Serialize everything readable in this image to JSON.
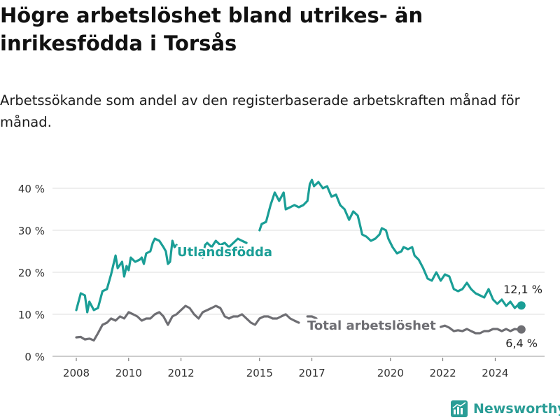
{
  "title": "Högre arbetslöshet bland utrikes- än inrikesfödda i Torsås",
  "subtitle": "Arbetssökande som andel av den registerbaserade arbetskraften månad för månad.",
  "brand": {
    "name": "Newsworthy"
  },
  "colors": {
    "foreign": "#1a9e96",
    "total": "#6e6e73",
    "grid": "#dcdcdc",
    "text": "#333333"
  },
  "chart_data": {
    "type": "line",
    "xlabel": "",
    "ylabel": "",
    "xlim": [
      2007.75,
      2025.6
    ],
    "ylim": [
      0,
      42
    ],
    "yticks": [
      0,
      10,
      20,
      30,
      40
    ],
    "ytick_labels": [
      "0 %",
      "10 %",
      "20 %",
      "30 %",
      "40 %"
    ],
    "xticks": [
      2008,
      2010,
      2012,
      2015,
      2017,
      2020,
      2022,
      2024
    ],
    "xtick_labels": [
      "2008",
      "2010",
      "2012",
      "2015",
      "2017",
      "2020",
      "2022",
      "2024"
    ],
    "grid": true,
    "series": [
      {
        "name": "Utlandsfödda",
        "end_label": "12,1 %",
        "color": "#1a9e96",
        "points": [
          [
            2008.0,
            11.0
          ],
          [
            2008.17,
            15.0
          ],
          [
            2008.33,
            14.5
          ],
          [
            2008.42,
            10.5
          ],
          [
            2008.5,
            13.0
          ],
          [
            2008.67,
            11.0
          ],
          [
            2008.83,
            11.5
          ],
          [
            2009.0,
            15.5
          ],
          [
            2009.17,
            16.0
          ],
          [
            2009.33,
            19.5
          ],
          [
            2009.5,
            24.0
          ],
          [
            2009.58,
            21.0
          ],
          [
            2009.75,
            22.5
          ],
          [
            2009.83,
            19.0
          ],
          [
            2009.92,
            21.5
          ],
          [
            2010.0,
            20.5
          ],
          [
            2010.08,
            23.5
          ],
          [
            2010.25,
            22.5
          ],
          [
            2010.42,
            23.0
          ],
          [
            2010.5,
            23.5
          ],
          [
            2010.58,
            22.0
          ],
          [
            2010.67,
            24.5
          ],
          [
            2010.83,
            25.0
          ],
          [
            2010.92,
            27.0
          ],
          [
            2011.0,
            28.0
          ],
          [
            2011.17,
            27.5
          ],
          [
            2011.33,
            26.0
          ],
          [
            2011.42,
            25.0
          ],
          [
            2011.5,
            22.0
          ],
          [
            2011.58,
            22.5
          ],
          [
            2011.67,
            27.5
          ],
          [
            2011.75,
            26.0
          ],
          [
            2011.83,
            26.5
          ],
          [
            2012.75,
            24.0
          ],
          [
            2012.83,
            23.5
          ],
          [
            2012.92,
            26.5
          ],
          [
            2013.0,
            27.0
          ],
          [
            2013.17,
            26.0
          ],
          [
            2013.33,
            27.5
          ],
          [
            2013.5,
            26.5
          ],
          [
            2013.67,
            27.0
          ],
          [
            2013.83,
            26.0
          ],
          [
            2014.0,
            27.0
          ],
          [
            2014.17,
            28.0
          ],
          [
            2014.33,
            27.5
          ],
          [
            2014.5,
            27.0
          ],
          [
            2015.0,
            30.0
          ],
          [
            2015.08,
            31.5
          ],
          [
            2015.25,
            32.0
          ],
          [
            2015.42,
            36.0
          ],
          [
            2015.58,
            39.0
          ],
          [
            2015.75,
            37.0
          ],
          [
            2015.92,
            39.0
          ],
          [
            2016.0,
            35.0
          ],
          [
            2016.17,
            35.5
          ],
          [
            2016.33,
            36.0
          ],
          [
            2016.5,
            35.5
          ],
          [
            2016.67,
            36.0
          ],
          [
            2016.83,
            37.0
          ],
          [
            2016.92,
            41.0
          ],
          [
            2017.0,
            42.0
          ],
          [
            2017.08,
            40.5
          ],
          [
            2017.25,
            41.5
          ],
          [
            2017.42,
            40.0
          ],
          [
            2017.58,
            40.5
          ],
          [
            2017.75,
            38.0
          ],
          [
            2017.92,
            38.5
          ],
          [
            2018.08,
            36.0
          ],
          [
            2018.25,
            35.0
          ],
          [
            2018.42,
            32.5
          ],
          [
            2018.58,
            34.5
          ],
          [
            2018.75,
            33.5
          ],
          [
            2018.83,
            31.5
          ],
          [
            2018.92,
            29.0
          ],
          [
            2019.08,
            28.5
          ],
          [
            2019.25,
            27.5
          ],
          [
            2019.42,
            28.0
          ],
          [
            2019.58,
            29.0
          ],
          [
            2019.67,
            30.5
          ],
          [
            2019.83,
            30.0
          ],
          [
            2019.92,
            28.0
          ],
          [
            2020.08,
            26.0
          ],
          [
            2020.25,
            24.5
          ],
          [
            2020.42,
            25.0
          ],
          [
            2020.5,
            26.0
          ],
          [
            2020.67,
            25.5
          ],
          [
            2020.83,
            26.0
          ],
          [
            2020.92,
            24.0
          ],
          [
            2021.08,
            23.0
          ],
          [
            2021.25,
            21.0
          ],
          [
            2021.42,
            18.5
          ],
          [
            2021.58,
            18.0
          ],
          [
            2021.75,
            20.0
          ],
          [
            2021.92,
            18.0
          ],
          [
            2022.08,
            19.5
          ],
          [
            2022.25,
            19.0
          ],
          [
            2022.42,
            16.0
          ],
          [
            2022.58,
            15.5
          ],
          [
            2022.75,
            16.0
          ],
          [
            2022.92,
            17.5
          ],
          [
            2023.08,
            16.0
          ],
          [
            2023.25,
            15.0
          ],
          [
            2023.42,
            14.5
          ],
          [
            2023.58,
            14.0
          ],
          [
            2023.75,
            16.0
          ],
          [
            2023.92,
            13.5
          ],
          [
            2024.08,
            12.5
          ],
          [
            2024.25,
            13.5
          ],
          [
            2024.42,
            12.0
          ],
          [
            2024.58,
            13.0
          ],
          [
            2024.75,
            11.5
          ],
          [
            2024.92,
            12.5
          ],
          [
            2025.0,
            12.1
          ]
        ]
      },
      {
        "name": "Total arbetslöshet",
        "end_label": "6,4 %",
        "color": "#6e6e73",
        "points": [
          [
            2008.0,
            4.5
          ],
          [
            2008.17,
            4.6
          ],
          [
            2008.33,
            4.0
          ],
          [
            2008.5,
            4.2
          ],
          [
            2008.67,
            3.8
          ],
          [
            2008.83,
            5.5
          ],
          [
            2009.0,
            7.5
          ],
          [
            2009.17,
            8.0
          ],
          [
            2009.33,
            9.0
          ],
          [
            2009.5,
            8.5
          ],
          [
            2009.67,
            9.5
          ],
          [
            2009.83,
            9.0
          ],
          [
            2010.0,
            10.5
          ],
          [
            2010.17,
            10.0
          ],
          [
            2010.33,
            9.5
          ],
          [
            2010.5,
            8.5
          ],
          [
            2010.67,
            9.0
          ],
          [
            2010.83,
            9.0
          ],
          [
            2011.0,
            10.0
          ],
          [
            2011.17,
            10.5
          ],
          [
            2011.33,
            9.5
          ],
          [
            2011.5,
            7.5
          ],
          [
            2011.67,
            9.5
          ],
          [
            2011.83,
            10.0
          ],
          [
            2012.0,
            11.0
          ],
          [
            2012.17,
            12.0
          ],
          [
            2012.33,
            11.5
          ],
          [
            2012.5,
            10.0
          ],
          [
            2012.67,
            9.0
          ],
          [
            2012.83,
            10.5
          ],
          [
            2013.0,
            11.0
          ],
          [
            2013.17,
            11.5
          ],
          [
            2013.33,
            12.0
          ],
          [
            2013.5,
            11.5
          ],
          [
            2013.67,
            9.5
          ],
          [
            2013.83,
            9.0
          ],
          [
            2014.0,
            9.5
          ],
          [
            2014.17,
            9.5
          ],
          [
            2014.33,
            10.0
          ],
          [
            2014.5,
            9.0
          ],
          [
            2014.67,
            8.0
          ],
          [
            2014.83,
            7.5
          ],
          [
            2015.0,
            9.0
          ],
          [
            2015.17,
            9.5
          ],
          [
            2015.33,
            9.5
          ],
          [
            2015.5,
            9.0
          ],
          [
            2015.67,
            9.0
          ],
          [
            2015.83,
            9.5
          ],
          [
            2016.0,
            10.0
          ],
          [
            2016.17,
            9.0
          ],
          [
            2016.33,
            8.5
          ],
          [
            2016.5,
            8.0
          ],
          [
            2016.83,
            9.5
          ],
          [
            2017.0,
            9.5
          ],
          [
            2017.17,
            9.0
          ],
          [
            2021.92,
            7.0
          ],
          [
            2022.08,
            7.3
          ],
          [
            2022.25,
            6.8
          ],
          [
            2022.42,
            6.0
          ],
          [
            2022.58,
            6.2
          ],
          [
            2022.75,
            6.0
          ],
          [
            2022.92,
            6.5
          ],
          [
            2023.08,
            6.0
          ],
          [
            2023.25,
            5.5
          ],
          [
            2023.42,
            5.5
          ],
          [
            2023.58,
            6.0
          ],
          [
            2023.75,
            6.0
          ],
          [
            2023.92,
            6.5
          ],
          [
            2024.08,
            6.5
          ],
          [
            2024.25,
            6.0
          ],
          [
            2024.42,
            6.5
          ],
          [
            2024.58,
            6.0
          ],
          [
            2024.75,
            6.5
          ],
          [
            2024.92,
            6.3
          ],
          [
            2025.0,
            6.4
          ]
        ]
      }
    ]
  }
}
